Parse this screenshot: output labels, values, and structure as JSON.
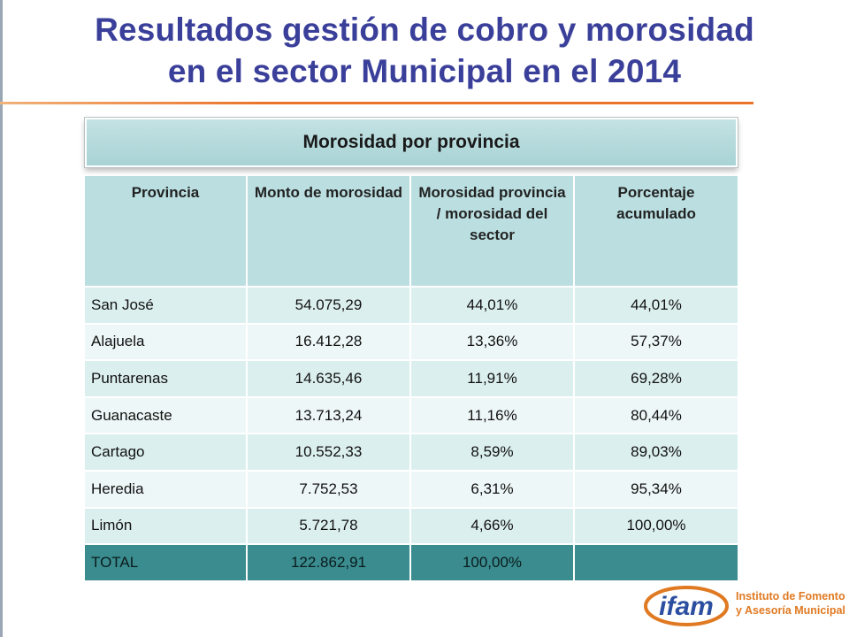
{
  "title": {
    "line1": "Resultados gestión de cobro y morosidad",
    "line2": "en el sector Municipal en el 2014"
  },
  "banner": "Morosidad por provincia",
  "table": {
    "headers": [
      "Provincia",
      "Monto de morosidad",
      "Morosidad provincia / morosidad del sector",
      "Porcentaje acumulado"
    ],
    "rows": [
      [
        "San José",
        "54.075,29",
        "44,01%",
        "44,01%"
      ],
      [
        "Alajuela",
        "16.412,28",
        "13,36%",
        "57,37%"
      ],
      [
        "Puntarenas",
        "14.635,46",
        "11,91%",
        "69,28%"
      ],
      [
        "Guanacaste",
        "13.713,24",
        "11,16%",
        "80,44%"
      ],
      [
        "Cartago",
        "10.552,33",
        "8,59%",
        "89,03%"
      ],
      [
        "Heredia",
        "7.752,53",
        "6,31%",
        "95,34%"
      ],
      [
        "Limón",
        "5.721,78",
        "4,66%",
        "100,00%"
      ]
    ],
    "total": [
      "TOTAL",
      "122.862,91",
      "100,00%",
      ""
    ]
  },
  "logo": {
    "mark": "ifam",
    "line1": "Instituto de Fomento",
    "line2": "y Asesoría Municipal"
  },
  "colors": {
    "title": "#3a3f9a",
    "underline": "#e9742a",
    "header_bg": "#bbdfe1",
    "total_bg": "#3a8c8f",
    "logo_orange": "#e07a22",
    "logo_blue": "#2b4ea0"
  }
}
